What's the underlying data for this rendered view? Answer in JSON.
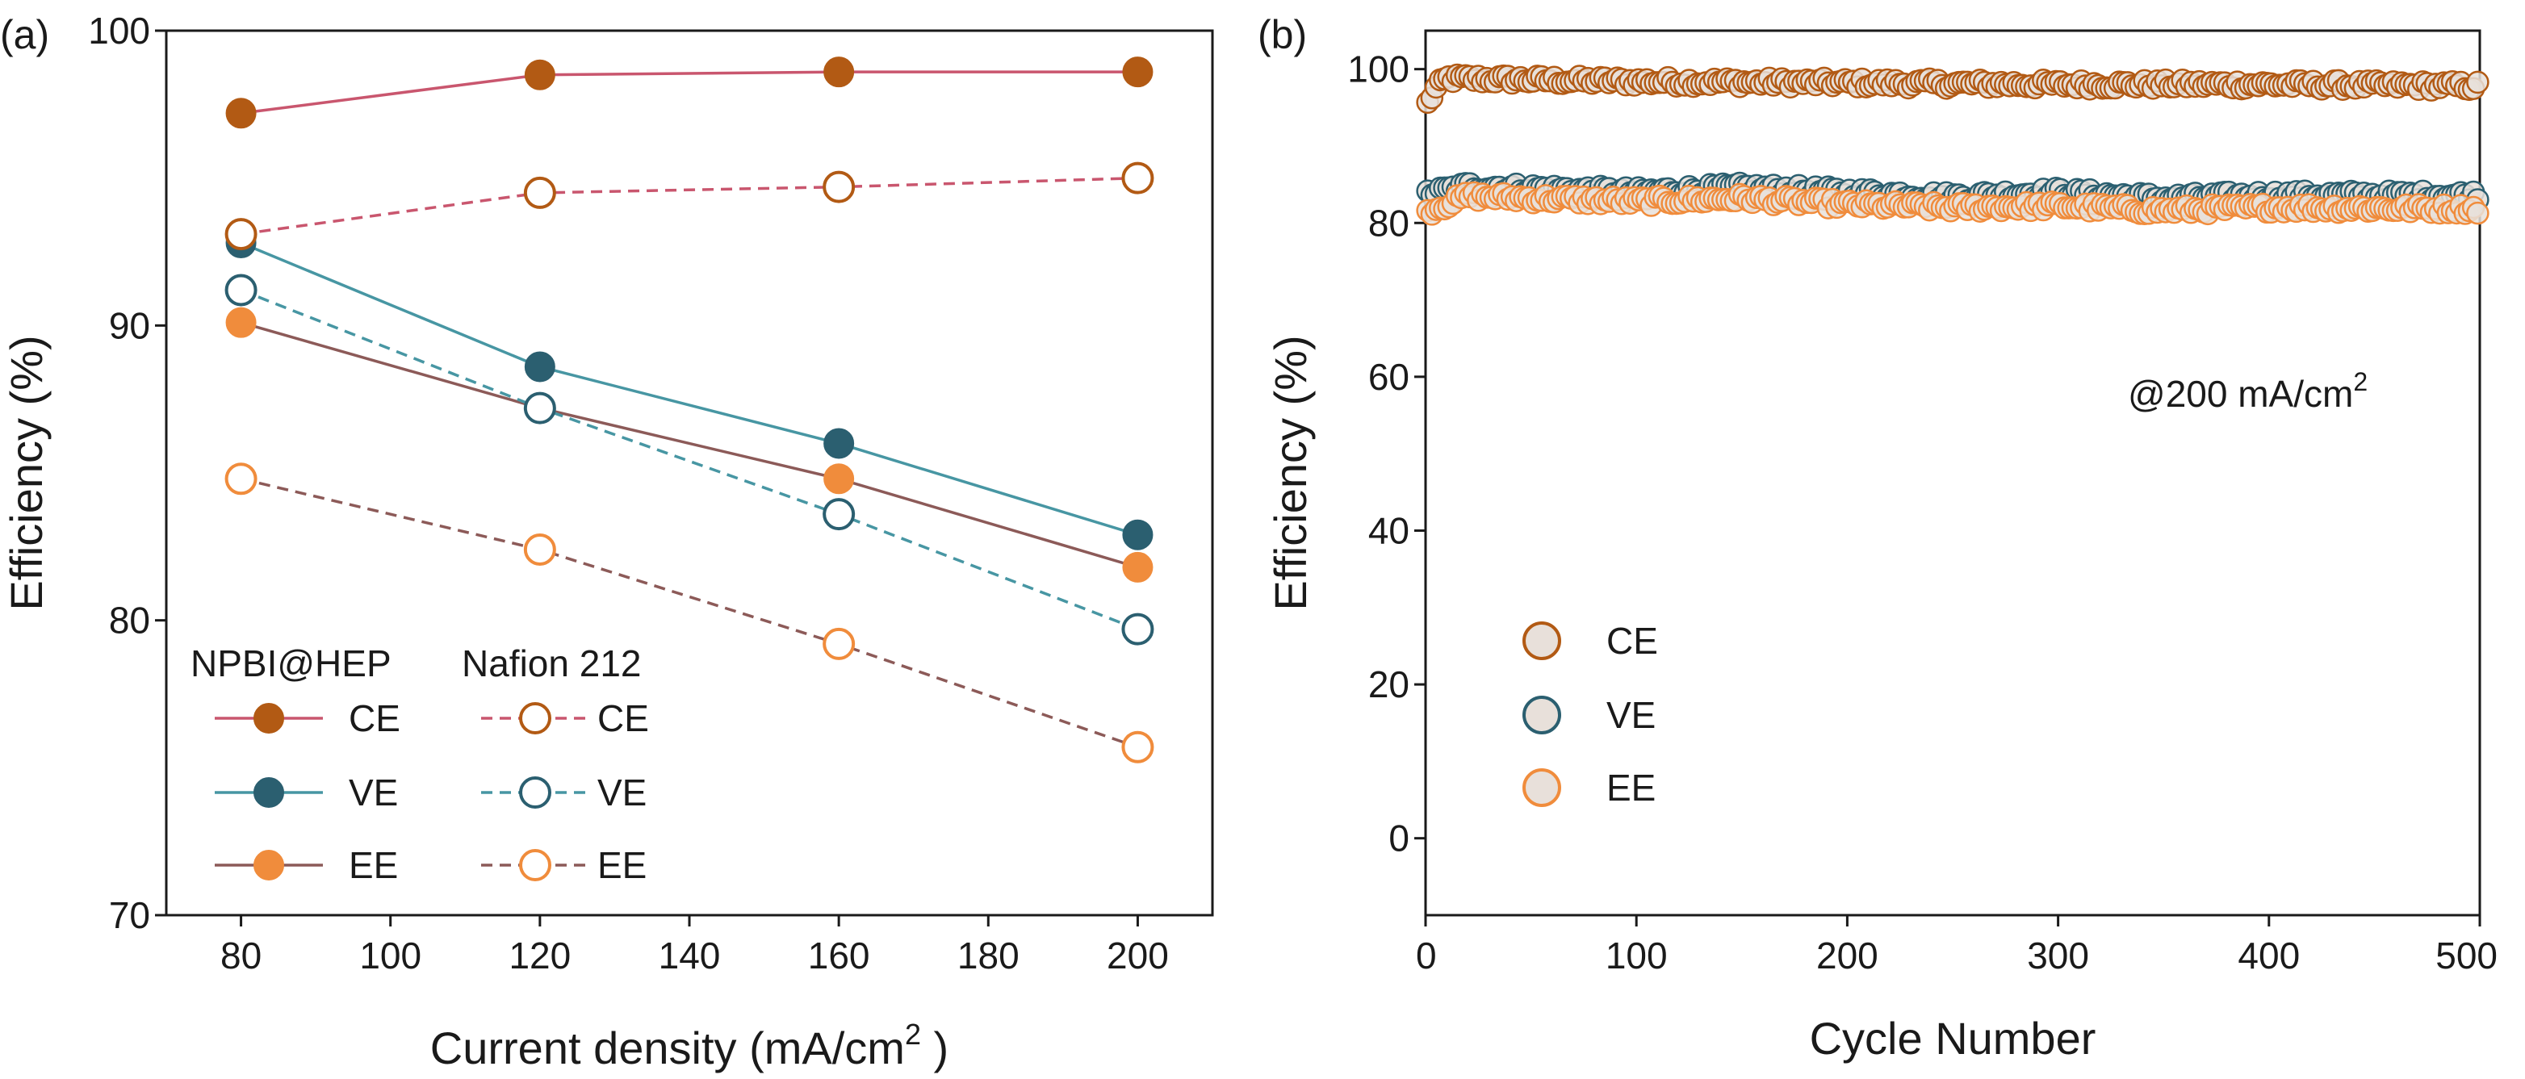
{
  "colors": {
    "ce_solid": "#b25a14",
    "ce_line": "#c9566e",
    "ve_solid": "#2b5f70",
    "ve_line": "#4796a3",
    "ee_solid": "#f08c3c",
    "ee_line": "#8c5a58",
    "scatter_fill": "#e8e0da"
  },
  "chart_data": [
    {
      "type": "line",
      "panel_label": "(a)",
      "xlabel": "Current density (mA/cm",
      "xlabel_sup": "2",
      "xlabel_tail": " )",
      "ylabel": "Efficiency (%)",
      "xlim": [
        70,
        210
      ],
      "ylim": [
        70,
        100
      ],
      "xticks": [
        80,
        100,
        120,
        140,
        160,
        180,
        200
      ],
      "yticks": [
        70,
        80,
        90,
        100
      ],
      "x": [
        80,
        120,
        160,
        200
      ],
      "legend_group_titles": [
        "NPBI@HEP",
        "Nafion 212"
      ],
      "series": [
        {
          "name": "CE",
          "group": "NPBI@HEP",
          "style": "solid",
          "filled": true,
          "color_key": "ce",
          "values": [
            97.2,
            98.5,
            98.6,
            98.6
          ]
        },
        {
          "name": "VE",
          "group": "NPBI@HEP",
          "style": "solid",
          "filled": true,
          "color_key": "ve",
          "values": [
            92.8,
            88.6,
            86.0,
            82.9
          ]
        },
        {
          "name": "EE",
          "group": "NPBI@HEP",
          "style": "solid",
          "filled": true,
          "color_key": "ee",
          "values": [
            90.1,
            87.2,
            84.8,
            81.8
          ]
        },
        {
          "name": "CE",
          "group": "Nafion 212",
          "style": "dashed",
          "filled": false,
          "color_key": "ce",
          "values": [
            93.1,
            94.5,
            94.7,
            95.0
          ]
        },
        {
          "name": "VE",
          "group": "Nafion 212",
          "style": "dashed",
          "filled": false,
          "color_key": "ve",
          "values": [
            91.2,
            87.2,
            83.6,
            79.7
          ]
        },
        {
          "name": "EE",
          "group": "Nafion 212",
          "style": "dashed",
          "filled": false,
          "color_key": "ee",
          "values": [
            84.8,
            82.4,
            79.2,
            75.7
          ]
        }
      ]
    },
    {
      "type": "scatter",
      "panel_label": "(b)",
      "xlabel": "Cycle Number",
      "ylabel": "Efficiency (%)",
      "xlim": [
        0,
        500
      ],
      "ylim": [
        -10,
        105
      ],
      "xticks": [
        0,
        100,
        200,
        300,
        400,
        500
      ],
      "yticks": [
        0,
        20,
        40,
        60,
        80,
        100
      ],
      "annotation": "@200 mA/cm",
      "annotation_sup": "2",
      "series": [
        {
          "name": "CE",
          "color_key": "ce",
          "approx_mean": 98.2,
          "keypoints": [
            [
              1,
              95.5
            ],
            [
              5,
              97.5
            ],
            [
              10,
              98.8
            ],
            [
              50,
              98.6
            ],
            [
              100,
              98.4
            ],
            [
              200,
              98.2
            ],
            [
              300,
              98.0
            ],
            [
              400,
              98.0
            ],
            [
              500,
              97.8
            ]
          ]
        },
        {
          "name": "VE",
          "color_key": "ve",
          "approx_mean": 84.0,
          "keypoints": [
            [
              1,
              83.8
            ],
            [
              20,
              84.8
            ],
            [
              50,
              84.5
            ],
            [
              100,
              84.0
            ],
            [
              150,
              84.6
            ],
            [
              200,
              84.0
            ],
            [
              250,
              83.4
            ],
            [
              300,
              84.0
            ],
            [
              350,
              83.2
            ],
            [
              400,
              83.6
            ],
            [
              500,
              83.6
            ]
          ]
        },
        {
          "name": "EE",
          "color_key": "ee",
          "approx_mean": 82.5,
          "keypoints": [
            [
              1,
              81.5
            ],
            [
              20,
              83.5
            ],
            [
              50,
              83.2
            ],
            [
              100,
              82.8
            ],
            [
              150,
              83.2
            ],
            [
              200,
              82.4
            ],
            [
              250,
              82.0
            ],
            [
              300,
              82.2
            ],
            [
              350,
              81.6
            ],
            [
              400,
              82.0
            ],
            [
              500,
              81.8
            ]
          ]
        }
      ]
    }
  ]
}
